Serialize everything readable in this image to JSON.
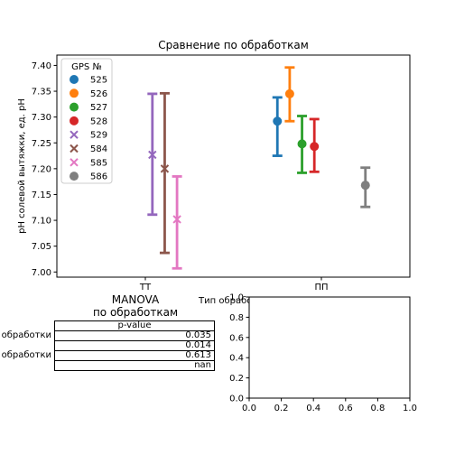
{
  "chart_data": [
    {
      "type": "errorbar",
      "title": "Сравнение по обработкам",
      "xlabel": "Тип обработки",
      "ylabel": "pH солевой вытяжки, ед. pH",
      "categories": [
        "ТТ",
        "ПП"
      ],
      "ylim": [
        6.99,
        7.42
      ],
      "yticks": [
        7.0,
        7.05,
        7.1,
        7.15,
        7.2,
        7.25,
        7.3,
        7.35,
        7.4
      ],
      "ytick_labels": [
        "7.00",
        "7.05",
        "7.10",
        "7.15",
        "7.20",
        "7.25",
        "7.30",
        "7.35",
        "7.40"
      ],
      "legend": {
        "title": "GPS №",
        "placement": "top-left"
      },
      "series": [
        {
          "name": "525",
          "color": "#1f77b4",
          "marker": "circle",
          "category": "ПП",
          "offset": -0.25,
          "mean": 7.292,
          "low": 7.225,
          "high": 7.338
        },
        {
          "name": "526",
          "color": "#ff7f0e",
          "marker": "circle",
          "category": "ПП",
          "offset": -0.18,
          "mean": 7.345,
          "low": 7.292,
          "high": 7.396
        },
        {
          "name": "527",
          "color": "#2ca02c",
          "marker": "circle",
          "category": "ПП",
          "offset": -0.11,
          "mean": 7.248,
          "low": 7.192,
          "high": 7.302
        },
        {
          "name": "528",
          "color": "#d62728",
          "marker": "circle",
          "category": "ПП",
          "offset": -0.04,
          "mean": 7.243,
          "low": 7.194,
          "high": 7.296
        },
        {
          "name": "529",
          "color": "#9467bd",
          "marker": "x",
          "category": "ТТ",
          "offset": 0.04,
          "mean": 7.227,
          "low": 7.111,
          "high": 7.345
        },
        {
          "name": "584",
          "color": "#8c564b",
          "marker": "x",
          "category": "ТТ",
          "offset": 0.11,
          "mean": 7.2,
          "low": 7.037,
          "high": 7.346
        },
        {
          "name": "585",
          "color": "#e377c2",
          "marker": "x",
          "category": "ТТ",
          "offset": 0.18,
          "mean": 7.102,
          "low": 7.007,
          "high": 7.185
        },
        {
          "name": "586",
          "color": "#7f7f7f",
          "marker": "circle",
          "category": "ПП",
          "offset": 0.25,
          "mean": 7.168,
          "low": 7.126,
          "high": 7.202
        }
      ]
    },
    {
      "type": "empty",
      "xlim": [
        0.0,
        1.0
      ],
      "ylim": [
        0.0,
        1.0
      ],
      "xticks": [
        "0.0",
        "0.2",
        "0.4",
        "0.6",
        "0.8",
        "1.0"
      ],
      "yticks": [
        "0.0",
        "0.2",
        "0.4",
        "0.6",
        "0.8",
        "1.0"
      ]
    }
  ],
  "manova": {
    "title_line1": "MANOVA",
    "title_line2": "по обработкам",
    "column_header": "p-value",
    "rows": [
      {
        "label": "обработки",
        "value": "0.035"
      },
      {
        "label": "",
        "value": "0.014"
      },
      {
        "label": "обработки",
        "value": "0.613"
      },
      {
        "label": "",
        "value": "nan"
      }
    ]
  }
}
